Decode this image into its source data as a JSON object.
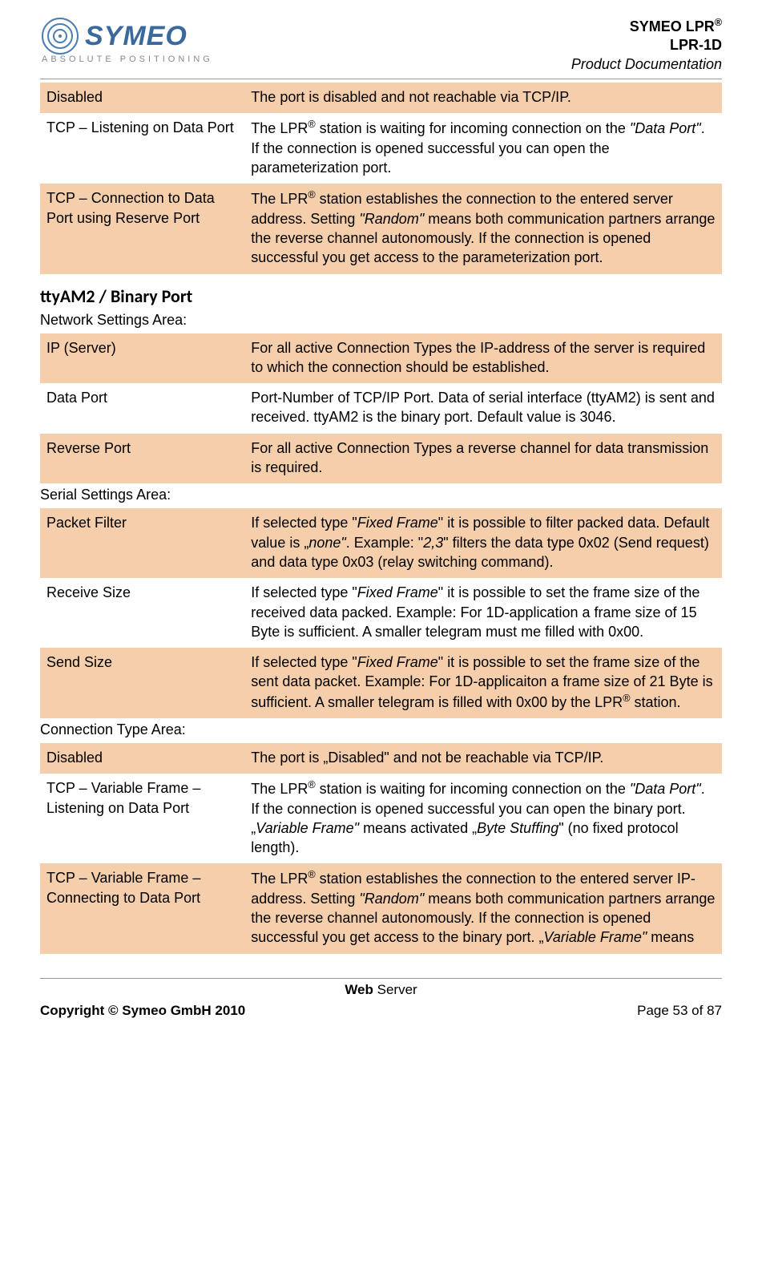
{
  "header": {
    "logo_text": "SYMEO",
    "logo_sub": "ABSOLUTE POSITIONING",
    "line1_a": "SYMEO LPR",
    "line1_sup": "®",
    "line2": "LPR-1D",
    "line3": "Product Documentation"
  },
  "table1": {
    "rows": [
      {
        "shaded": true,
        "c1": "Disabled",
        "c2": "The port is disabled and not reachable via TCP/IP."
      },
      {
        "shaded": false,
        "c1": "TCP – Listening on Data Port",
        "c2": "The LPR<sup>®</sup> station is waiting for incoming connection on the <span class=\"italic\">\"Data Port\"</span>. If the connection is opened successful you can open the parameterization port."
      },
      {
        "shaded": true,
        "c1": "TCP – Connection to Data Port using Reserve Port",
        "c2": "The LPR<sup>®</sup> station establishes the connection to the entered server address. Setting <span class=\"italic\">\"Random\"</span> means both communication partners arrange the reverse channel autonomously. If the connection is opened successful you get access to the parameterization port."
      }
    ]
  },
  "section_heading": "ttyAM2 / Binary Port",
  "sub1": "Network Settings Area:",
  "table2": {
    "rows": [
      {
        "shaded": true,
        "c1": "IP (Server)",
        "c2": "For all active Connection Types the IP-address of the server is required to which the connection should be established."
      },
      {
        "shaded": false,
        "c1": "Data Port",
        "c2": "Port-Number of TCP/IP Port. Data of serial interface (ttyAM2) is sent and received. ttyAM2 is the binary port. Default value is 3046."
      },
      {
        "shaded": true,
        "c1": "Reverse Port",
        "c2": "For all active Connection Types a reverse channel for data transmission is required."
      }
    ]
  },
  "sub2": "Serial Settings Area:",
  "table3": {
    "rows": [
      {
        "shaded": true,
        "c1": "Packet Filter",
        "c2": "If selected type \"<span class=\"italic\">Fixed Frame</span>\" it is possible to filter packed data. Default value is „<span class=\"italic\">none\"</span>. Example: \"<span class=\"italic\">2,3</span>\" filters the data type 0x02 (Send request) and data type 0x03 (relay switching command)."
      },
      {
        "shaded": false,
        "c1": "Receive Size",
        "c2": "If selected type \"<span class=\"italic\">Fixed Frame</span>\" it is possible to set the frame size of the received data packed. Example: For 1D-application a frame size of 15 Byte is sufficient. A smaller telegram must me filled with 0x00."
      },
      {
        "shaded": true,
        "c1": "Send Size",
        "c2": "If selected type \"<span class=\"italic\">Fixed Frame</span>\" it is possible to set the frame size of the sent data packet. Example: For 1D-applicaiton a frame size of 21 Byte is sufficient. A smaller telegram is filled with 0x00 by the LPR<sup>®</sup> station."
      }
    ]
  },
  "sub3": "Connection Type Area:",
  "table4": {
    "rows": [
      {
        "shaded": true,
        "c1": "Disabled",
        "c2": "The port is „Disabled\" and not be reachable via TCP/IP."
      },
      {
        "shaded": false,
        "c1": "TCP – Variable Frame – Listening on Data Port",
        "c2": "The LPR<sup>®</sup> station is waiting for incoming connection on the <span class=\"italic\">\"Data Port\"</span>. If the connection is opened successful you can open the binary port. „<span class=\"italic\">Variable Frame\"</span> means activated „<span class=\"italic\">Byte Stuffing</span>\" (no fixed protocol length)."
      },
      {
        "shaded": true,
        "c1": "TCP – Variable Frame – Connecting to Data Port",
        "c2": "The LPR<sup>®</sup> station establishes the connection to the entered server IP-address. Setting <span class=\"italic\">\"Random\"</span> means both communication partners arrange the reverse channel autonomously. If the connection is opened successful you get access to the binary port. „<span class=\"italic\">Variable Frame\"</span> means"
      }
    ]
  },
  "footer": {
    "center_bold": "Web",
    "center_rest": " Server",
    "left": "Copyright © Symeo GmbH 2010",
    "right": "Page 53 of 87"
  }
}
